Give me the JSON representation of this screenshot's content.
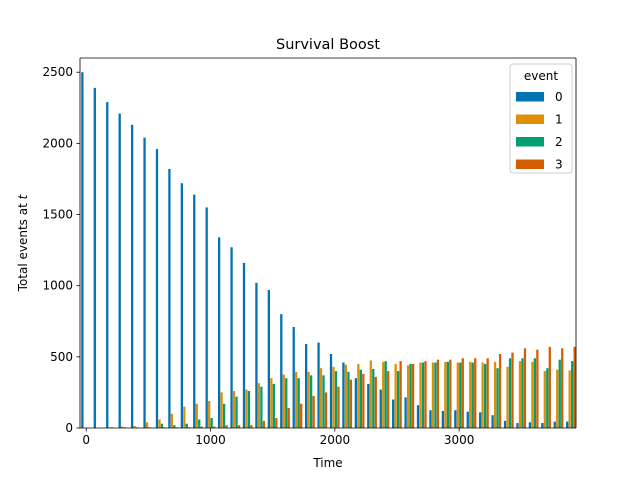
{
  "chart_data": {
    "type": "bar",
    "title": "Survival Boost",
    "xlabel": "Time",
    "ylabel": "Total events at ",
    "ylabel_var": "t",
    "xlim": [
      -50,
      3940
    ],
    "ylim": [
      0,
      2600
    ],
    "xticks": [
      0,
      1000,
      2000,
      3000
    ],
    "yticks": [
      0,
      500,
      1000,
      1500,
      2000,
      2500
    ],
    "grid": false,
    "legend": {
      "title": "event",
      "placement": "top-right"
    },
    "x": [
      0,
      100,
      200,
      300,
      400,
      500,
      600,
      700,
      800,
      900,
      1000,
      1100,
      1200,
      1300,
      1400,
      1500,
      1600,
      1700,
      1800,
      1900,
      2000,
      2100,
      2200,
      2300,
      2400,
      2500,
      2600,
      2700,
      2800,
      2900,
      3000,
      3100,
      3200,
      3300,
      3400,
      3500,
      3600,
      3700,
      3800,
      3900
    ],
    "series": [
      {
        "name": "0",
        "color": "#0173b2",
        "values": [
          2500,
          2390,
          2290,
          2210,
          2130,
          2040,
          1960,
          1820,
          1720,
          1640,
          1550,
          1340,
          1270,
          1160,
          1020,
          970,
          800,
          710,
          590,
          600,
          520,
          460,
          350,
          310,
          270,
          200,
          215,
          160,
          125,
          120,
          125,
          115,
          110,
          90,
          50,
          35,
          40,
          35,
          45,
          45
        ]
      },
      {
        "name": "1",
        "color": "#de8f05",
        "values": [
          0,
          0,
          5,
          10,
          15,
          40,
          60,
          100,
          150,
          170,
          190,
          250,
          260,
          270,
          315,
          350,
          375,
          395,
          395,
          420,
          430,
          445,
          450,
          475,
          465,
          450,
          440,
          460,
          460,
          465,
          460,
          465,
          460,
          465,
          430,
          470,
          465,
          400,
          410,
          405
        ]
      },
      {
        "name": "2",
        "color": "#029e73",
        "values": [
          0,
          0,
          5,
          5,
          5,
          5,
          30,
          20,
          30,
          60,
          70,
          170,
          220,
          260,
          290,
          310,
          350,
          350,
          370,
          370,
          400,
          395,
          410,
          415,
          470,
          400,
          450,
          460,
          460,
          465,
          460,
          460,
          450,
          420,
          490,
          490,
          490,
          420,
          480,
          470
        ]
      },
      {
        "name": "3",
        "color": "#d55e00",
        "values": [
          0,
          0,
          0,
          0,
          0,
          0,
          5,
          5,
          5,
          10,
          10,
          20,
          20,
          20,
          50,
          70,
          140,
          170,
          225,
          250,
          290,
          340,
          380,
          360,
          400,
          470,
          450,
          470,
          480,
          480,
          490,
          490,
          490,
          520,
          530,
          560,
          550,
          570,
          560,
          570
        ]
      }
    ]
  }
}
